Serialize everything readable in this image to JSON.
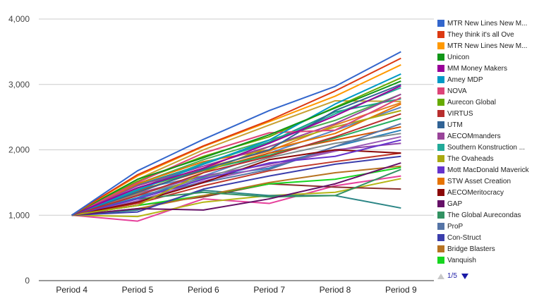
{
  "chart_data": {
    "type": "line",
    "title": "",
    "xlabel": "",
    "ylabel": "",
    "categories": [
      "Period 4",
      "Period 5",
      "Period 6",
      "Period 7",
      "Period 8",
      "Period 9"
    ],
    "y_ticks": [
      "0",
      "1,000",
      "2,000",
      "3,000",
      "4,000"
    ],
    "ylim": [
      0,
      4000
    ],
    "grid": true,
    "legend_position": "right",
    "series": [
      {
        "name": "MTR New Lines New M...",
        "color": "#3366cc",
        "values": [
          1000,
          1680,
          2160,
          2600,
          2970,
          3500
        ]
      },
      {
        "name": "They think it's all Ove",
        "color": "#dc3912",
        "values": [
          1000,
          1620,
          2060,
          2450,
          2900,
          3400
        ]
      },
      {
        "name": "MTR New Lines New M...",
        "color": "#ff9900",
        "values": [
          1000,
          1600,
          2050,
          2430,
          2820,
          3300
        ]
      },
      {
        "name": "Unicon",
        "color": "#109618",
        "values": [
          1000,
          1550,
          1880,
          2230,
          2640,
          3050
        ]
      },
      {
        "name": "MM Money Makers",
        "color": "#990099",
        "values": [
          1000,
          1420,
          1720,
          2100,
          2520,
          2980
        ]
      },
      {
        "name": "Amey MDP",
        "color": "#0099c6",
        "values": [
          1000,
          1380,
          1780,
          2150,
          2700,
          3160
        ]
      },
      {
        "name": "NOVA",
        "color": "#dd4477",
        "values": [
          1000,
          1500,
          1950,
          2260,
          2300,
          2800
        ]
      },
      {
        "name": "Aurecon Global",
        "color": "#66aa00",
        "values": [
          1000,
          1520,
          1900,
          2200,
          2650,
          3100
        ]
      },
      {
        "name": "VIRTUS",
        "color": "#b82e2e",
        "values": [
          1000,
          1300,
          1650,
          1900,
          2200,
          2550
        ]
      },
      {
        "name": "UTM",
        "color": "#316395",
        "values": [
          1000,
          1350,
          1700,
          2000,
          2600,
          3000
        ]
      },
      {
        "name": "AECOMmanders",
        "color": "#994499",
        "values": [
          1000,
          1450,
          1750,
          2050,
          2400,
          2850
        ]
      },
      {
        "name": "Southern Konstruction ...",
        "color": "#22aa99",
        "values": [
          1000,
          1400,
          1800,
          2100,
          2550,
          2950
        ]
      },
      {
        "name": "The Ovaheads",
        "color": "#aaaa11",
        "values": [
          1000,
          1150,
          1650,
          2050,
          2350,
          2600
        ]
      },
      {
        "name": "Mott MacDonald Maverick",
        "color": "#6633cc",
        "values": [
          1000,
          1250,
          1550,
          1800,
          1900,
          2150
        ]
      },
      {
        "name": "STW Asset Creation",
        "color": "#e67300",
        "values": [
          1000,
          1480,
          1820,
          2000,
          2250,
          2700
        ]
      },
      {
        "name": "AECOMeritocracy",
        "color": "#8b0707",
        "values": [
          1000,
          1200,
          1500,
          1850,
          2000,
          1950
        ]
      },
      {
        "name": "GAP",
        "color": "#651067",
        "values": [
          1000,
          1100,
          1080,
          1250,
          1480,
          1800
        ]
      },
      {
        "name": "The Global Aurecondas",
        "color": "#329262",
        "values": [
          1000,
          1250,
          1350,
          1280,
          1300,
          1700
        ]
      },
      {
        "name": "ProP",
        "color": "#5574a6",
        "values": [
          1000,
          1300,
          1500,
          1700,
          2050,
          2400
        ]
      },
      {
        "name": "Con-Struct",
        "color": "#3b3eac",
        "values": [
          1000,
          1050,
          1400,
          1600,
          1780,
          1900
        ]
      },
      {
        "name": "Bridge Blasters",
        "color": "#b77322",
        "values": [
          1000,
          1100,
          1300,
          1500,
          1650,
          1750
        ]
      },
      {
        "name": "Vanquish",
        "color": "#16d620",
        "values": [
          1000,
          1150,
          1300,
          1480,
          1550,
          1730
        ]
      }
    ],
    "extra_lines": [
      {
        "color": "#e6409b",
        "values": [
          1000,
          910,
          1250,
          1180,
          1450,
          1600
        ]
      },
      {
        "color": "#b5b516",
        "values": [
          1000,
          980,
          1200,
          1300,
          1350,
          1560
        ]
      },
      {
        "color": "#2a8585",
        "values": [
          1000,
          1080,
          1380,
          1300,
          1300,
          1110
        ]
      },
      {
        "color": "#8a2f2f",
        "values": [
          1000,
          1150,
          1280,
          1480,
          1430,
          1400
        ]
      },
      {
        "color": "#5a86c5",
        "values": [
          1000,
          1400,
          1600,
          1950,
          2300,
          2650
        ]
      },
      {
        "color": "#c7a032",
        "values": [
          1000,
          1550,
          2000,
          2380,
          2750,
          2740
        ]
      },
      {
        "color": "#8e44ad",
        "values": [
          1000,
          1330,
          1600,
          1780,
          2000,
          2100
        ]
      },
      {
        "color": "#4caf50",
        "values": [
          1000,
          1480,
          1850,
          2150,
          2450,
          2850
        ]
      },
      {
        "color": "#d35400",
        "values": [
          1000,
          1370,
          1680,
          1950,
          2150,
          2350
        ]
      },
      {
        "color": "#2980b9",
        "values": [
          1000,
          1270,
          1580,
          1720,
          2050,
          2300
        ]
      },
      {
        "color": "#c0392b",
        "values": [
          1000,
          1180,
          1450,
          1680,
          1820,
          1950
        ]
      },
      {
        "color": "#7f8c8d",
        "values": [
          1000,
          1320,
          1560,
          1880,
          2100,
          2250
        ]
      },
      {
        "color": "#16a085",
        "values": [
          1000,
          1460,
          1780,
          2120,
          2580,
          2780
        ]
      },
      {
        "color": "#9b59b6",
        "values": [
          1000,
          1220,
          1520,
          1750,
          1980,
          2200
        ]
      },
      {
        "color": "#e67e22",
        "values": [
          1000,
          1340,
          1720,
          1980,
          2380,
          2720
        ]
      },
      {
        "color": "#27ae60",
        "values": [
          1000,
          1410,
          1690,
          1920,
          2180,
          2480
        ]
      }
    ]
  },
  "legend": {
    "items": [
      {
        "label": "MTR New Lines New M...",
        "color": "#3366cc"
      },
      {
        "label": "They think it's all Ove",
        "color": "#dc3912"
      },
      {
        "label": "MTR New Lines New M...",
        "color": "#ff9900"
      },
      {
        "label": "Unicon",
        "color": "#109618"
      },
      {
        "label": "MM Money Makers",
        "color": "#990099"
      },
      {
        "label": "Amey MDP",
        "color": "#0099c6"
      },
      {
        "label": "NOVA",
        "color": "#dd4477"
      },
      {
        "label": "Aurecon Global",
        "color": "#66aa00"
      },
      {
        "label": "VIRTUS",
        "color": "#b82e2e"
      },
      {
        "label": "UTM",
        "color": "#316395"
      },
      {
        "label": "AECOMmanders",
        "color": "#994499"
      },
      {
        "label": "Southern Konstruction ...",
        "color": "#22aa99"
      },
      {
        "label": "The Ovaheads",
        "color": "#aaaa11"
      },
      {
        "label": "Mott MacDonald Maverick",
        "color": "#6633cc"
      },
      {
        "label": "STW Asset Creation",
        "color": "#e67300"
      },
      {
        "label": "AECOMeritocracy",
        "color": "#8b0707"
      },
      {
        "label": "GAP",
        "color": "#651067"
      },
      {
        "label": "The Global Aurecondas",
        "color": "#329262"
      },
      {
        "label": "ProP",
        "color": "#5574a6"
      },
      {
        "label": "Con-Struct",
        "color": "#3b3eac"
      },
      {
        "label": "Bridge Blasters",
        "color": "#b77322"
      },
      {
        "label": "Vanquish",
        "color": "#16d620"
      }
    ],
    "pager_text": "1/5",
    "prev_icon": "triangle-up-icon",
    "next_icon": "triangle-down-icon"
  }
}
